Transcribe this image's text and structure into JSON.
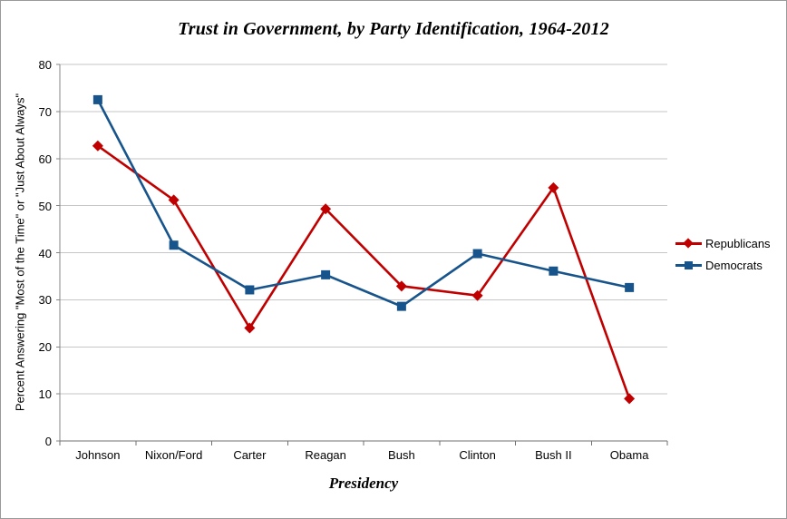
{
  "chart_data": {
    "type": "line",
    "title": "Trust in Government, by Party Identification, 1964-2012",
    "xlabel": "Presidency",
    "ylabel": "Percent Answering \"Most of the Time\" or \"Just About Always\"",
    "categories": [
      "Johnson",
      "Nixon/Ford",
      "Carter",
      "Reagan",
      "Bush",
      "Clinton",
      "Bush II",
      "Obama"
    ],
    "series": [
      {
        "name": "Republicans",
        "marker": "diamond",
        "color": "#C00000",
        "values": [
          62.7,
          51.2,
          24.0,
          49.3,
          32.9,
          30.9,
          53.8,
          9.0
        ]
      },
      {
        "name": "Democrats",
        "marker": "square",
        "color": "#17548C",
        "values": [
          72.5,
          41.6,
          32.1,
          35.3,
          28.6,
          39.8,
          36.1,
          32.6
        ]
      }
    ],
    "ylim": [
      0,
      80
    ],
    "y_tick_step": 10,
    "grid": true,
    "legend_position": "right",
    "colors": {
      "gridline": "#C6C6C6",
      "y_axis": "#848484",
      "x_axis": "#707070",
      "tick": "#848484",
      "text": "#000000",
      "background": "#FFFFFF"
    }
  }
}
